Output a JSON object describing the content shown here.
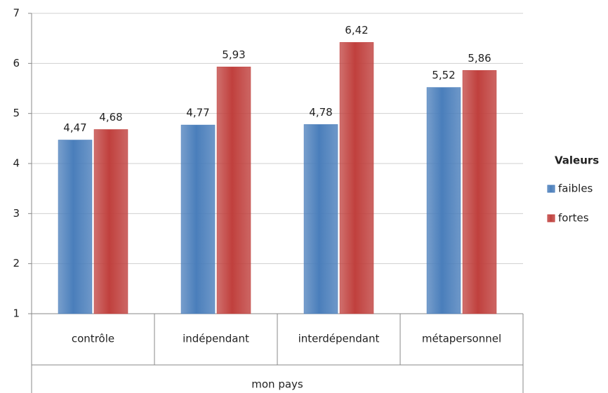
{
  "chart_data": {
    "type": "bar",
    "categories": [
      "contrôle",
      "indépendant",
      "interdépendant",
      "métapersonnel"
    ],
    "x_label": "mon pays",
    "legend_title": "Valeurs",
    "legend": "right",
    "grid": true,
    "ylim": [
      1,
      7
    ],
    "yticks": [
      1,
      2,
      3,
      4,
      5,
      6,
      7
    ],
    "series": [
      {
        "name": "faibles",
        "color": "#4a7ebb",
        "values": [
          4.47,
          4.77,
          4.78,
          5.52
        ],
        "value_labels": [
          "4,47",
          "4,77",
          "4,78",
          "5,52"
        ]
      },
      {
        "name": "fortes",
        "color": "#c0403d",
        "values": [
          4.68,
          5.93,
          6.42,
          5.86
        ],
        "value_labels": [
          "4,68",
          "5,93",
          "6,42",
          "5,86"
        ]
      }
    ]
  }
}
